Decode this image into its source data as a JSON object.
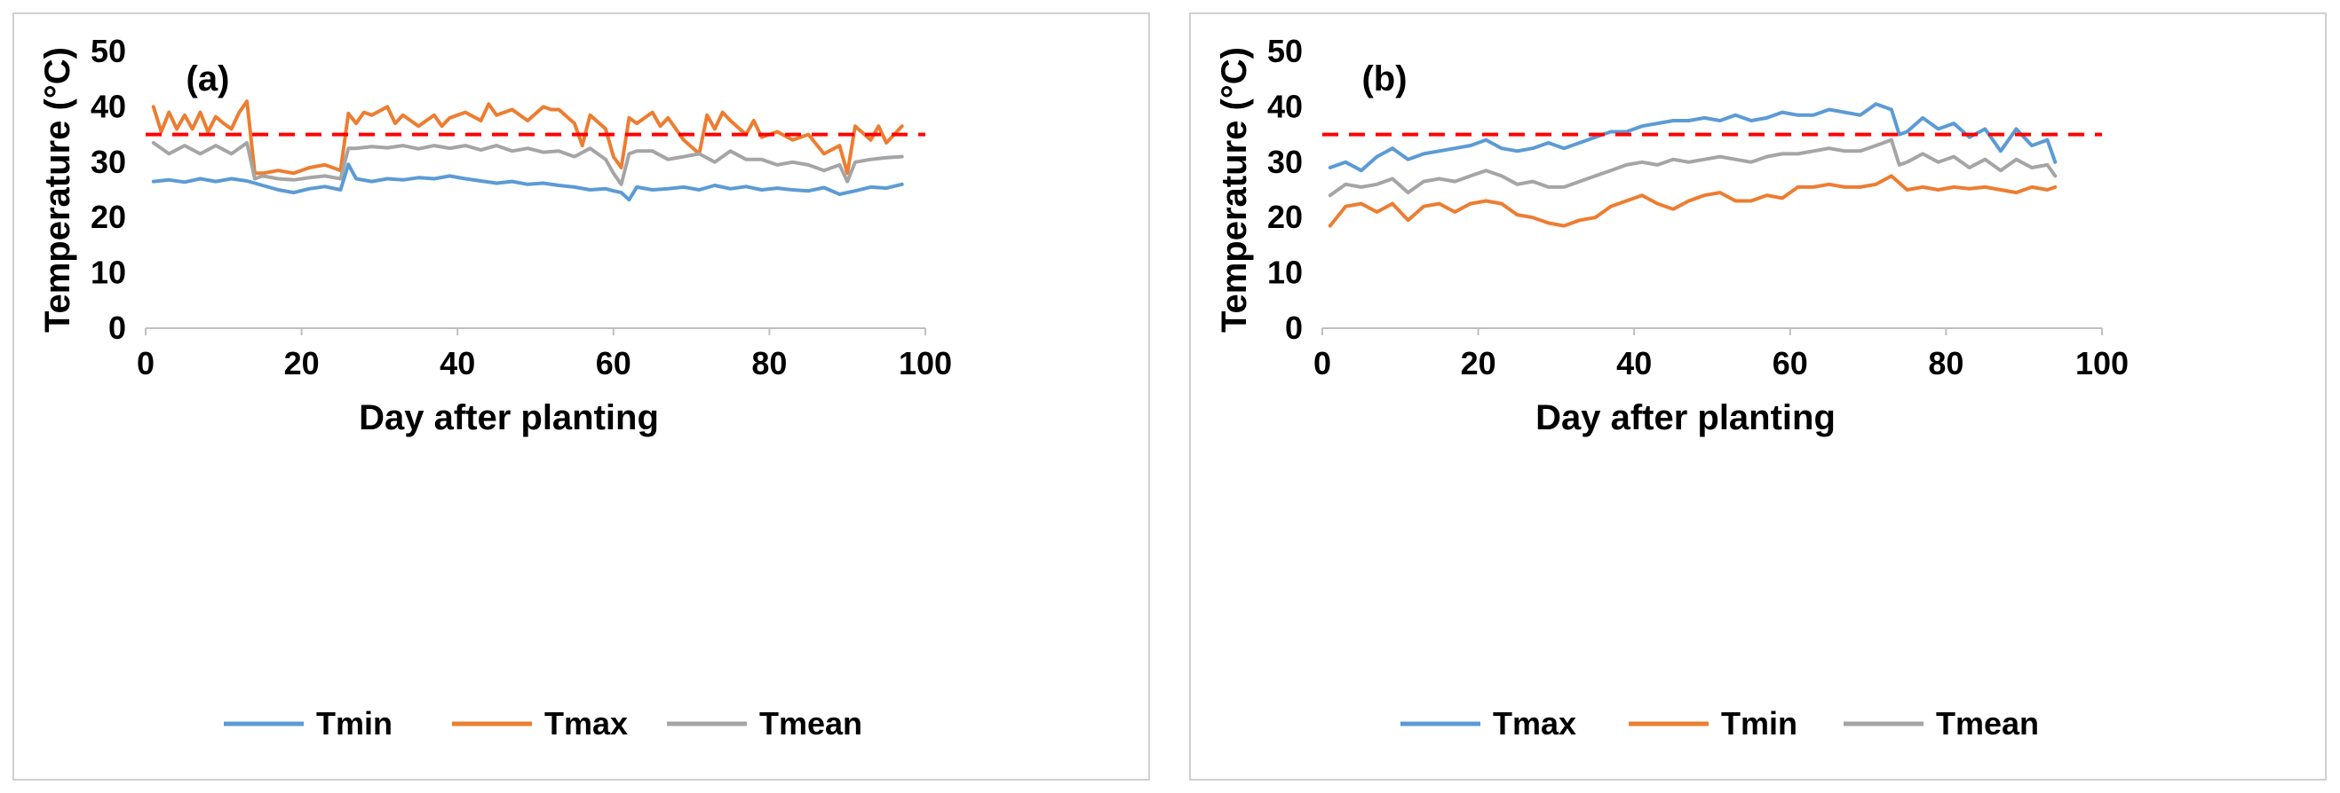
{
  "chart_data": [
    {
      "type": "line",
      "panel_label": "(a)",
      "title": "",
      "xlabel": "Day after planting",
      "ylabel": "Temperature (°C)",
      "xlim": [
        0,
        100
      ],
      "ylim": [
        0,
        50
      ],
      "xticks": [
        "0",
        "20",
        "40",
        "60",
        "80",
        "100"
      ],
      "yticks": [
        "0",
        "10",
        "20",
        "30",
        "40",
        "50"
      ],
      "threshold": {
        "value": 35,
        "color": "#ff0000",
        "style": "dashed"
      },
      "legend_position": "bottom",
      "series": [
        {
          "name": "Tmin",
          "color": "#5b9bd5",
          "x": [
            1,
            3,
            5,
            7,
            9,
            11,
            13,
            15,
            17,
            19,
            21,
            23,
            25,
            26,
            27,
            29,
            31,
            33,
            35,
            37,
            39,
            41,
            43,
            45,
            47,
            49,
            51,
            53,
            55,
            57,
            59,
            60,
            61,
            62,
            63,
            65,
            67,
            69,
            71,
            73,
            75,
            77,
            79,
            81,
            83,
            85,
            87,
            89,
            90,
            91,
            93,
            95,
            97
          ],
          "y": [
            26.5,
            26.8,
            26.4,
            27,
            26.5,
            27,
            26.6,
            25.8,
            25,
            24.5,
            25.2,
            25.6,
            25,
            29.6,
            27,
            26.5,
            27,
            26.8,
            27.2,
            27,
            27.5,
            27,
            26.6,
            26.2,
            26.5,
            26,
            26.2,
            25.8,
            25.5,
            25,
            25.2,
            24.8,
            24.5,
            23.2,
            25.5,
            25,
            25.2,
            25.5,
            25,
            25.8,
            25.2,
            25.6,
            25,
            25.3,
            25,
            24.8,
            25.4,
            24.2,
            24.5,
            24.8,
            25.5,
            25.3,
            26
          ]
        },
        {
          "name": "Tmax",
          "color": "#ed7d31",
          "x": [
            1,
            2,
            3,
            4,
            5,
            6,
            7,
            8,
            9,
            10,
            11,
            12,
            13,
            14,
            15,
            17,
            19,
            21,
            23,
            25,
            26,
            27,
            28,
            29,
            31,
            32,
            33,
            35,
            37,
            38,
            39,
            41,
            43,
            44,
            45,
            47,
            49,
            51,
            52,
            53,
            55,
            56,
            57,
            59,
            60,
            61,
            62,
            63,
            65,
            66,
            67,
            69,
            71,
            72,
            73,
            74,
            75,
            77,
            78,
            79,
            81,
            83,
            85,
            87,
            89,
            90,
            91,
            93,
            94,
            95,
            97
          ],
          "y": [
            40,
            35.5,
            39,
            36,
            38.5,
            36,
            39,
            35.5,
            38.2,
            37,
            36,
            39,
            41,
            28,
            28,
            28.5,
            28,
            29,
            29.5,
            28.5,
            38.8,
            37,
            39,
            38.5,
            40,
            37,
            38.5,
            36.5,
            38.5,
            36.5,
            38,
            39,
            37.5,
            40.5,
            38.5,
            39.5,
            37.5,
            40,
            39.5,
            39.5,
            37,
            33,
            38.5,
            36,
            31,
            29,
            38,
            37,
            39,
            36.5,
            38,
            34,
            31.5,
            38.5,
            36,
            39,
            37.5,
            35,
            37.5,
            34.5,
            35.5,
            34,
            35,
            31.5,
            33,
            28,
            36.5,
            34,
            36.5,
            33.5,
            36.5
          ]
        },
        {
          "name": "Tmean",
          "color": "#a5a5a5",
          "x": [
            1,
            3,
            5,
            7,
            9,
            11,
            13,
            14,
            15,
            17,
            19,
            21,
            23,
            25,
            26,
            27,
            29,
            31,
            33,
            35,
            37,
            39,
            41,
            43,
            45,
            47,
            49,
            51,
            53,
            55,
            57,
            59,
            60,
            61,
            62,
            63,
            65,
            67,
            69,
            71,
            73,
            75,
            77,
            79,
            81,
            83,
            85,
            87,
            89,
            90,
            91,
            93,
            95,
            97
          ],
          "y": [
            33.5,
            31.5,
            33,
            31.5,
            33,
            31.5,
            33.5,
            27,
            27.5,
            27,
            26.8,
            27.2,
            27.5,
            27,
            32.5,
            32.5,
            32.8,
            32.6,
            33,
            32.4,
            33,
            32.5,
            33,
            32.2,
            33,
            32,
            32.5,
            31.8,
            32,
            31,
            32.5,
            30.5,
            28,
            26,
            31.5,
            32,
            32,
            30.5,
            31,
            31.5,
            30,
            32,
            30.5,
            30.5,
            29.5,
            30,
            29.5,
            28.5,
            29.5,
            26.5,
            30,
            30.5,
            30.8,
            31
          ]
        }
      ]
    },
    {
      "type": "line",
      "panel_label": "(b)",
      "title": "",
      "xlabel": "Day after planting",
      "ylabel": "Temperature (°C)",
      "xlim": [
        0,
        100
      ],
      "ylim": [
        0,
        50
      ],
      "xticks": [
        "0",
        "20",
        "40",
        "60",
        "80",
        "100"
      ],
      "yticks": [
        "0",
        "10",
        "20",
        "30",
        "40",
        "50"
      ],
      "threshold": {
        "value": 35,
        "color": "#ff0000",
        "style": "dashed"
      },
      "legend_position": "bottom",
      "series": [
        {
          "name": "Tmax",
          "color": "#5b9bd5",
          "x": [
            1,
            3,
            5,
            7,
            9,
            11,
            13,
            15,
            17,
            19,
            21,
            23,
            25,
            27,
            29,
            31,
            33,
            35,
            37,
            39,
            41,
            43,
            45,
            47,
            49,
            51,
            53,
            55,
            57,
            59,
            61,
            63,
            65,
            67,
            69,
            71,
            73,
            74,
            75,
            77,
            79,
            81,
            83,
            85,
            87,
            89,
            91,
            93,
            94
          ],
          "y": [
            29,
            30,
            28.5,
            31,
            32.5,
            30.5,
            31.5,
            32,
            32.5,
            33,
            34,
            32.5,
            32,
            32.5,
            33.5,
            32.5,
            33.5,
            34.5,
            35.5,
            35.5,
            36.5,
            37,
            37.5,
            37.5,
            38,
            37.5,
            38.5,
            37.5,
            38,
            39,
            38.5,
            38.5,
            39.5,
            39,
            38.5,
            40.5,
            39.5,
            35,
            35.5,
            38,
            36,
            37,
            34.5,
            36,
            32,
            36,
            33,
            34,
            30
          ]
        },
        {
          "name": "Tmin",
          "color": "#ed7d31",
          "x": [
            1,
            3,
            5,
            7,
            9,
            11,
            13,
            15,
            17,
            19,
            21,
            23,
            25,
            27,
            29,
            31,
            33,
            35,
            37,
            39,
            41,
            43,
            45,
            47,
            49,
            51,
            53,
            55,
            57,
            59,
            61,
            63,
            65,
            67,
            69,
            71,
            73,
            75,
            77,
            79,
            81,
            83,
            85,
            87,
            89,
            91,
            93,
            94
          ],
          "y": [
            18.5,
            22,
            22.5,
            21,
            22.5,
            19.5,
            22,
            22.5,
            21,
            22.5,
            23,
            22.5,
            20.5,
            20,
            19,
            18.5,
            19.5,
            20,
            22,
            23,
            24,
            22.5,
            21.5,
            23,
            24,
            24.5,
            23,
            23,
            24,
            23.5,
            25.5,
            25.5,
            26,
            25.5,
            25.5,
            26,
            27.5,
            25,
            25.5,
            25,
            25.5,
            25.2,
            25.5,
            25,
            24.5,
            25.5,
            25,
            25.5
          ]
        },
        {
          "name": "Tmean",
          "color": "#a5a5a5",
          "x": [
            1,
            3,
            5,
            7,
            9,
            11,
            13,
            15,
            17,
            19,
            21,
            23,
            25,
            27,
            29,
            31,
            33,
            35,
            37,
            39,
            41,
            43,
            45,
            47,
            49,
            51,
            53,
            55,
            57,
            59,
            61,
            63,
            65,
            67,
            69,
            71,
            73,
            74,
            75,
            77,
            79,
            81,
            83,
            85,
            87,
            89,
            91,
            93,
            94
          ],
          "y": [
            24,
            26,
            25.5,
            26,
            27,
            24.5,
            26.5,
            27,
            26.5,
            27.5,
            28.5,
            27.5,
            26,
            26.5,
            25.5,
            25.5,
            26.5,
            27.5,
            28.5,
            29.5,
            30,
            29.5,
            30.5,
            30,
            30.5,
            31,
            30.5,
            30,
            31,
            31.5,
            31.5,
            32,
            32.5,
            32,
            32,
            33,
            34,
            29.5,
            30,
            31.5,
            30,
            31,
            29,
            30.5,
            28.5,
            30.5,
            29,
            29.5,
            27.5
          ]
        }
      ]
    }
  ]
}
